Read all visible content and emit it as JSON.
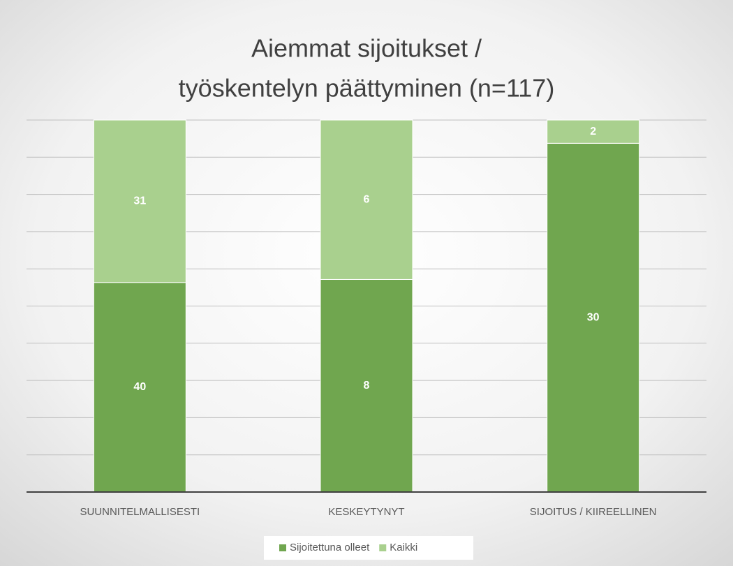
{
  "chart_data": {
    "type": "bar",
    "stacking": "percent",
    "title": [
      "Aiemmat sijoitukset /",
      "työskentelyn päättyminen (n=117)"
    ],
    "categories": [
      "SUUNNITELMALLISESTI",
      "KESKEYTYNYT",
      "SIJOITUS / KIIREELLINEN"
    ],
    "series": [
      {
        "name": "Sijoitettuna olleet",
        "color": "#70a64f",
        "values": [
          40,
          8,
          30
        ]
      },
      {
        "name": "Kaikki",
        "color": "#a9d08e",
        "values": [
          31,
          6,
          2
        ]
      }
    ],
    "ylim": [
      0,
      100
    ],
    "yticks": [
      0,
      10,
      20,
      30,
      40,
      50,
      60,
      70,
      80,
      90,
      100
    ],
    "ytick_labels": false,
    "grid": true,
    "legend": "bottom"
  }
}
